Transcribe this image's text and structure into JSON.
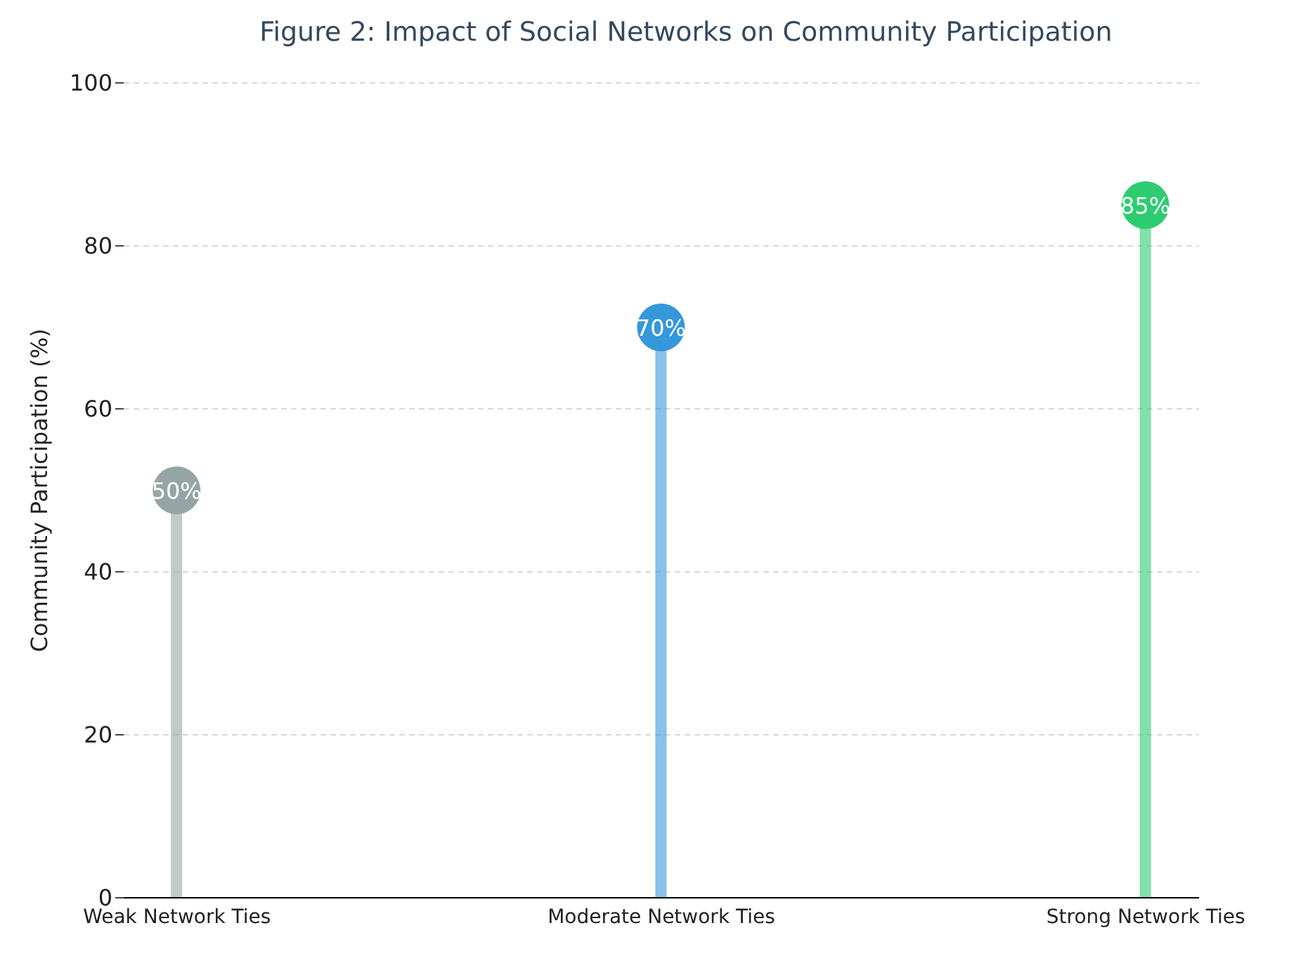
{
  "chart_data": {
    "type": "lollipop",
    "title": "Figure 2: Impact of Social Networks on Community Participation",
    "ylabel": "Community Participation (%)",
    "categories": [
      "Weak Network Ties",
      "Moderate Network Ties",
      "Strong Network Ties"
    ],
    "values": [
      50,
      70,
      85
    ],
    "colors": [
      "#95a5a6",
      "#3498db",
      "#2ecc71"
    ],
    "value_labels": [
      "50%",
      "70%",
      "85%"
    ],
    "ylim": [
      0,
      100
    ],
    "yticks": [
      0,
      20,
      40,
      60,
      80,
      100
    ],
    "grid": "y"
  }
}
